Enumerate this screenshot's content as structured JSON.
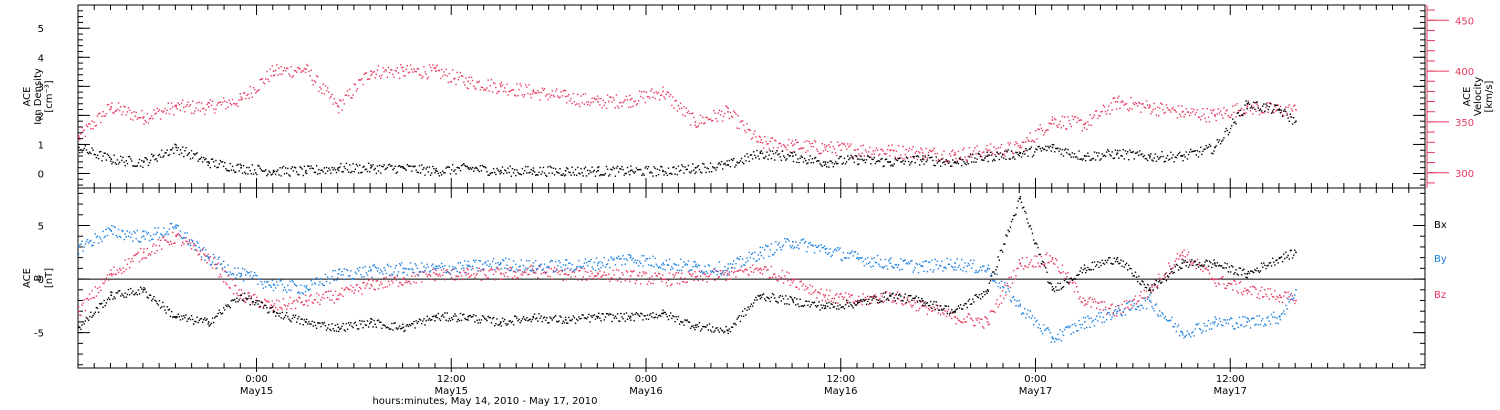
{
  "figure": {
    "xlabel": "hours:minutes, May 14, 2010 - May 17, 2010",
    "x_ticks": [
      {
        "t": "2010-05-15T00:00",
        "hm": "0:00",
        "day": "May15"
      },
      {
        "t": "2010-05-15T12:00",
        "hm": "12:00",
        "day": "May15"
      },
      {
        "t": "2010-05-16T00:00",
        "hm": "0:00",
        "day": "May16"
      },
      {
        "t": "2010-05-16T12:00",
        "hm": "12:00",
        "day": "May16"
      },
      {
        "t": "2010-05-17T00:00",
        "hm": "0:00",
        "day": "May17"
      },
      {
        "t": "2010-05-17T12:00",
        "hm": "12:00",
        "day": "May17"
      }
    ]
  },
  "colors": {
    "density": "#000000",
    "velocity": "#e8385f",
    "bx": "#000000",
    "by": "#1a7fe0",
    "bz": "#e8385f"
  },
  "chart_data": [
    {
      "type": "scatter",
      "panel": "top",
      "ylabel": [
        "ACE",
        "Ion Density",
        "[cm⁻³]"
      ],
      "ylabel_right": [
        "ACE",
        "Velocity",
        "[km/s]"
      ],
      "xlim": [
        "2010-05-14T13:00",
        "2010-05-18T00:00"
      ],
      "ylim": [
        -0.5,
        5.8
      ],
      "yticks": [
        0,
        1,
        2,
        3,
        4,
        5
      ],
      "ylim_right": [
        285,
        465
      ],
      "yticks_right": [
        300,
        350,
        400,
        450
      ],
      "series": [
        {
          "key": "density",
          "axis": "left",
          "x": [
            "2010-05-14T13:00",
            "2010-05-14T15:00",
            "2010-05-14T17:00",
            "2010-05-14T19:00",
            "2010-05-14T21:00",
            "2010-05-14T23:00",
            "2010-05-15T01:00",
            "2010-05-15T03:00",
            "2010-05-15T05:00",
            "2010-05-15T07:00",
            "2010-05-15T09:00",
            "2010-05-15T11:00",
            "2010-05-15T13:00",
            "2010-05-15T15:00",
            "2010-05-15T17:00",
            "2010-05-15T19:00",
            "2010-05-15T21:00",
            "2010-05-15T23:00",
            "2010-05-16T01:00",
            "2010-05-16T03:00",
            "2010-05-16T05:00",
            "2010-05-16T07:00",
            "2010-05-16T09:00",
            "2010-05-16T11:00",
            "2010-05-16T13:00",
            "2010-05-16T15:00",
            "2010-05-16T17:00",
            "2010-05-16T19:00",
            "2010-05-16T21:00",
            "2010-05-16T23:00",
            "2010-05-17T01:00",
            "2010-05-17T03:00",
            "2010-05-17T05:00",
            "2010-05-17T07:00",
            "2010-05-17T09:00",
            "2010-05-17T11:00",
            "2010-05-17T13:00",
            "2010-05-17T15:00",
            "2010-05-17T16:00"
          ],
          "values": [
            0.9,
            0.5,
            0.4,
            0.9,
            0.4,
            0.2,
            0.1,
            0.1,
            0.2,
            0.2,
            0.2,
            0.1,
            0.2,
            0.1,
            0.1,
            0.1,
            0.1,
            0.1,
            0.1,
            0.2,
            0.3,
            0.7,
            0.6,
            0.4,
            0.5,
            0.4,
            0.5,
            0.4,
            0.6,
            0.7,
            0.9,
            0.6,
            0.7,
            0.6,
            0.6,
            0.9,
            2.4,
            2.2,
            1.8
          ]
        },
        {
          "key": "velocity",
          "axis": "right",
          "x": [
            "2010-05-14T13:00",
            "2010-05-14T15:00",
            "2010-05-14T17:00",
            "2010-05-14T19:00",
            "2010-05-14T21:00",
            "2010-05-14T23:00",
            "2010-05-15T01:00",
            "2010-05-15T03:00",
            "2010-05-15T05:00",
            "2010-05-15T07:00",
            "2010-05-15T09:00",
            "2010-05-15T11:00",
            "2010-05-15T13:00",
            "2010-05-15T15:00",
            "2010-05-15T17:00",
            "2010-05-15T19:00",
            "2010-05-15T21:00",
            "2010-05-15T23:00",
            "2010-05-16T01:00",
            "2010-05-16T03:00",
            "2010-05-16T05:00",
            "2010-05-16T07:00",
            "2010-05-16T09:00",
            "2010-05-16T11:00",
            "2010-05-16T13:00",
            "2010-05-16T15:00",
            "2010-05-16T17:00",
            "2010-05-16T19:00",
            "2010-05-16T21:00",
            "2010-05-16T23:00",
            "2010-05-17T01:00",
            "2010-05-17T03:00",
            "2010-05-17T05:00",
            "2010-05-17T07:00",
            "2010-05-17T09:00",
            "2010-05-17T11:00",
            "2010-05-17T13:00",
            "2010-05-17T15:00",
            "2010-05-17T16:00"
          ],
          "values": [
            335,
            365,
            355,
            365,
            365,
            372,
            400,
            402,
            365,
            400,
            400,
            400,
            390,
            385,
            380,
            375,
            370,
            372,
            380,
            350,
            360,
            330,
            327,
            325,
            323,
            322,
            320,
            318,
            322,
            325,
            352,
            348,
            370,
            365,
            360,
            357,
            365,
            362,
            362
          ]
        }
      ]
    },
    {
      "type": "scatter",
      "panel": "bottom",
      "ylabel": [
        "ACE",
        "B",
        "[nT]"
      ],
      "xlim": [
        "2010-05-14T13:00",
        "2010-05-18T00:00"
      ],
      "ylim": [
        -8.3,
        8.5
      ],
      "yticks": [
        -5,
        0,
        5
      ],
      "series": [
        {
          "key": "bx",
          "name": "Bx",
          "x": [
            "2010-05-14T13:00",
            "2010-05-14T15:00",
            "2010-05-14T17:00",
            "2010-05-14T19:00",
            "2010-05-14T21:00",
            "2010-05-14T23:00",
            "2010-05-15T01:00",
            "2010-05-15T03:00",
            "2010-05-15T05:00",
            "2010-05-15T07:00",
            "2010-05-15T09:00",
            "2010-05-15T11:00",
            "2010-05-15T13:00",
            "2010-05-15T15:00",
            "2010-05-15T17:00",
            "2010-05-15T19:00",
            "2010-05-15T21:00",
            "2010-05-15T23:00",
            "2010-05-16T01:00",
            "2010-05-16T03:00",
            "2010-05-16T05:00",
            "2010-05-16T07:00",
            "2010-05-16T09:00",
            "2010-05-16T11:00",
            "2010-05-16T13:00",
            "2010-05-16T15:00",
            "2010-05-16T17:00",
            "2010-05-16T19:00",
            "2010-05-16T21:00",
            "2010-05-16T23:00",
            "2010-05-17T01:00",
            "2010-05-17T03:00",
            "2010-05-17T05:00",
            "2010-05-17T07:00",
            "2010-05-17T09:00",
            "2010-05-17T11:00",
            "2010-05-17T13:00",
            "2010-05-17T15:00",
            "2010-05-17T16:00"
          ],
          "values": [
            -4.5,
            -1.5,
            -1.0,
            -3.5,
            -4.0,
            -1.5,
            -3.0,
            -4.0,
            -4.5,
            -4.0,
            -4.5,
            -3.5,
            -3.5,
            -4.0,
            -3.5,
            -3.8,
            -3.5,
            -3.5,
            -3.2,
            -4.3,
            -4.8,
            -1.5,
            -2.0,
            -2.5,
            -2.2,
            -1.5,
            -2.0,
            -3.0,
            -1.0,
            7.5,
            -1.0,
            1.0,
            2.0,
            -1.0,
            1.5,
            1.5,
            0.5,
            2.0,
            2.5
          ]
        },
        {
          "key": "by",
          "name": "By",
          "x": [
            "2010-05-14T13:00",
            "2010-05-14T15:00",
            "2010-05-14T17:00",
            "2010-05-14T19:00",
            "2010-05-14T21:00",
            "2010-05-14T23:00",
            "2010-05-15T01:00",
            "2010-05-15T03:00",
            "2010-05-15T05:00",
            "2010-05-15T07:00",
            "2010-05-15T09:00",
            "2010-05-15T11:00",
            "2010-05-15T13:00",
            "2010-05-15T15:00",
            "2010-05-15T17:00",
            "2010-05-15T19:00",
            "2010-05-15T21:00",
            "2010-05-15T23:00",
            "2010-05-16T01:00",
            "2010-05-16T03:00",
            "2010-05-16T05:00",
            "2010-05-16T07:00",
            "2010-05-16T09:00",
            "2010-05-16T11:00",
            "2010-05-16T13:00",
            "2010-05-16T15:00",
            "2010-05-16T17:00",
            "2010-05-16T19:00",
            "2010-05-16T21:00",
            "2010-05-16T23:00",
            "2010-05-17T01:00",
            "2010-05-17T03:00",
            "2010-05-17T05:00",
            "2010-05-17T07:00",
            "2010-05-17T09:00",
            "2010-05-17T11:00",
            "2010-05-17T13:00",
            "2010-05-17T15:00",
            "2010-05-17T16:00"
          ],
          "values": [
            3.0,
            4.5,
            4.0,
            4.8,
            2.0,
            0.5,
            -0.5,
            -0.8,
            0.5,
            0.8,
            1.0,
            1.0,
            1.2,
            1.5,
            1.2,
            1.3,
            1.5,
            2.0,
            1.5,
            1.2,
            1.0,
            2.5,
            3.5,
            2.8,
            2.0,
            1.5,
            1.2,
            1.5,
            1.0,
            -2.5,
            -5.5,
            -4.0,
            -3.0,
            -2.0,
            -5.0,
            -4.0,
            -4.0,
            -3.5,
            -1.0
          ]
        },
        {
          "key": "bz",
          "name": "Bz",
          "x": [
            "2010-05-14T13:00",
            "2010-05-14T15:00",
            "2010-05-14T17:00",
            "2010-05-14T19:00",
            "2010-05-14T21:00",
            "2010-05-14T23:00",
            "2010-05-15T01:00",
            "2010-05-15T03:00",
            "2010-05-15T05:00",
            "2010-05-15T07:00",
            "2010-05-15T09:00",
            "2010-05-15T11:00",
            "2010-05-15T13:00",
            "2010-05-15T15:00",
            "2010-05-15T17:00",
            "2010-05-15T19:00",
            "2010-05-15T21:00",
            "2010-05-15T23:00",
            "2010-05-16T01:00",
            "2010-05-16T03:00",
            "2010-05-16T05:00",
            "2010-05-16T07:00",
            "2010-05-16T09:00",
            "2010-05-16T11:00",
            "2010-05-16T13:00",
            "2010-05-16T15:00",
            "2010-05-16T17:00",
            "2010-05-16T19:00",
            "2010-05-16T21:00",
            "2010-05-16T23:00",
            "2010-05-17T01:00",
            "2010-05-17T03:00",
            "2010-05-17T05:00",
            "2010-05-17T07:00",
            "2010-05-17T09:00",
            "2010-05-17T11:00",
            "2010-05-17T13:00",
            "2010-05-17T15:00",
            "2010-05-17T16:00"
          ],
          "values": [
            -3.0,
            0.5,
            2.5,
            4.0,
            2.0,
            -1.5,
            -2.5,
            -2.0,
            -1.5,
            -0.5,
            0.0,
            0.5,
            0.5,
            0.5,
            0.8,
            0.5,
            0.5,
            0.3,
            0.0,
            0.2,
            0.5,
            1.0,
            0.0,
            -1.5,
            -2.0,
            -1.5,
            -2.5,
            -3.5,
            -4.0,
            1.5,
            2.0,
            -2.0,
            -3.0,
            -1.0,
            2.5,
            0.0,
            -1.0,
            -1.5,
            -2.0
          ]
        }
      ]
    }
  ]
}
